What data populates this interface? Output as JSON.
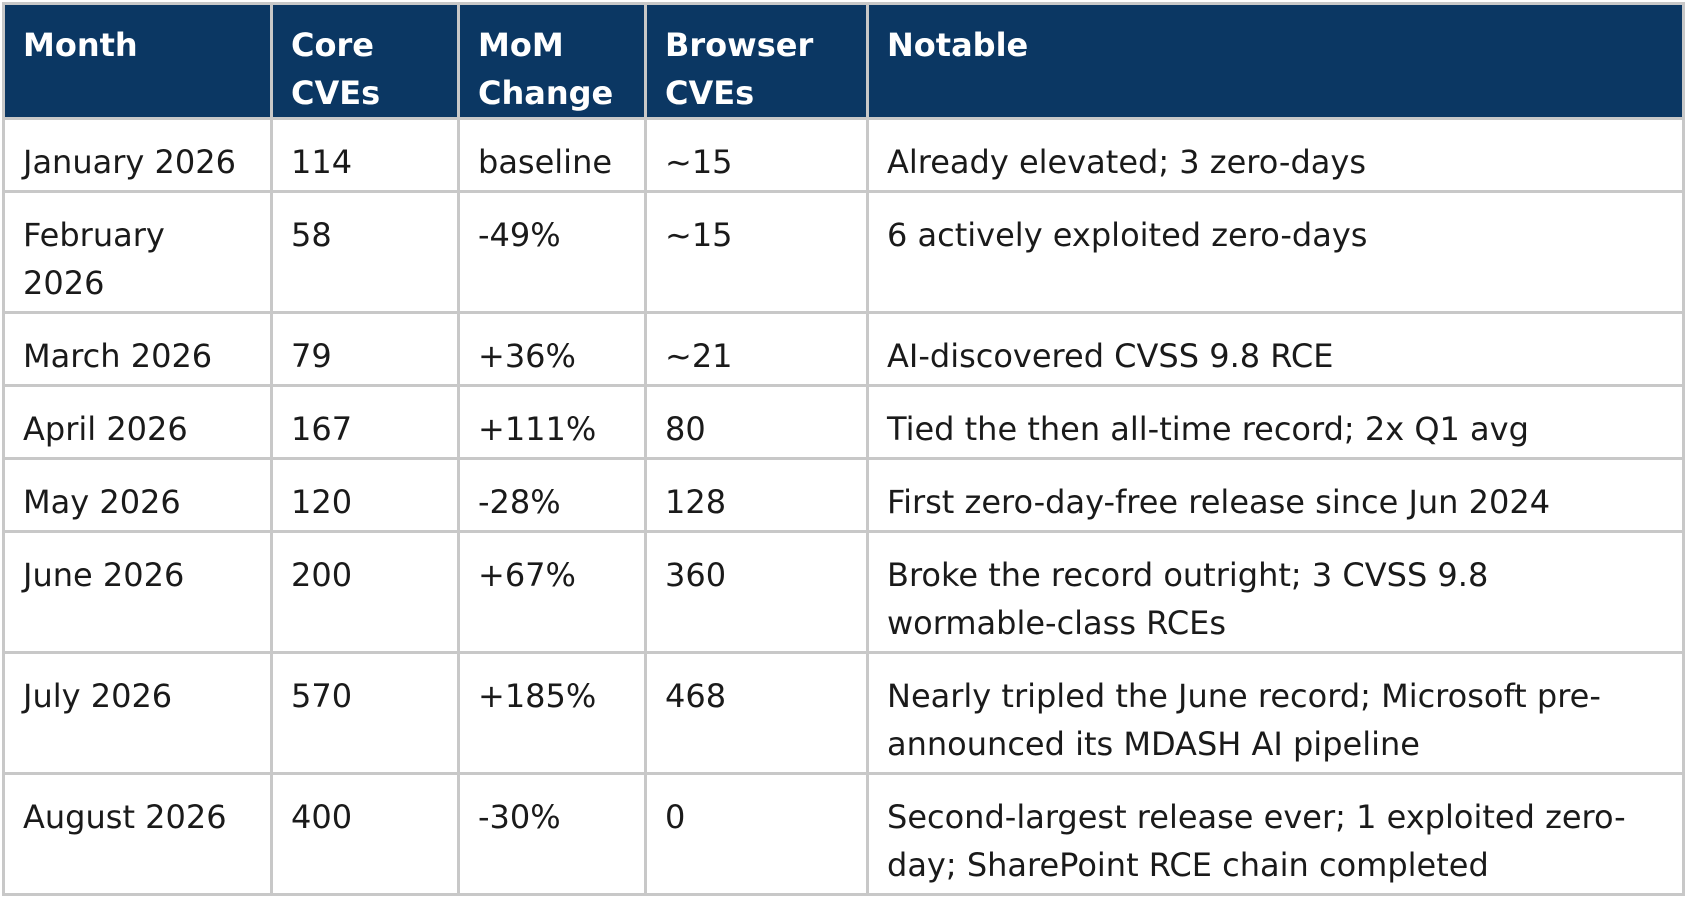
{
  "table": {
    "headers": [
      [
        "Month"
      ],
      [
        "Core",
        "CVEs"
      ],
      [
        "MoM",
        "Change"
      ],
      [
        "Browser",
        "CVEs"
      ],
      [
        "Notable"
      ]
    ],
    "rows": [
      {
        "month": "January 2026",
        "core": "114",
        "mom": "baseline",
        "browser": "~15",
        "notable": "Already elevated; 3 zero-days"
      },
      {
        "month": "February 2026",
        "core": "58",
        "mom": "-49%",
        "browser": "~15",
        "notable": "6 actively exploited zero-days"
      },
      {
        "month": "March 2026",
        "core": "79",
        "mom": "+36%",
        "browser": "~21",
        "notable": "AI-discovered CVSS 9.8 RCE"
      },
      {
        "month": "April 2026",
        "core": "167",
        "mom": "+111%",
        "browser": "80",
        "notable": "Tied the then all-time record; 2x Q1 avg"
      },
      {
        "month": "May 2026",
        "core": "120",
        "mom": "-28%",
        "browser": "128",
        "notable": "First zero-day-free release since Jun 2024"
      },
      {
        "month": "June 2026",
        "core": "200",
        "mom": "+67%",
        "browser": "360",
        "notable": "Broke the record outright; 3 CVSS 9.8 wormable-class RCEs"
      },
      {
        "month": "July 2026",
        "core": "570",
        "mom": "+185%",
        "browser": "468",
        "notable": "Nearly tripled the June record; Microsoft pre-announced its MDASH AI pipeline"
      },
      {
        "month": "August 2026",
        "core": "400",
        "mom": "-30%",
        "browser": "0",
        "notable": "Second-largest release ever; 1 exploited zero-day; SharePoint RCE chain completed"
      }
    ]
  },
  "colors": {
    "header_bg": "#0b3763",
    "header_text": "#ffffff",
    "border": "#c8c8c8",
    "body_text": "#1a1a1a"
  }
}
